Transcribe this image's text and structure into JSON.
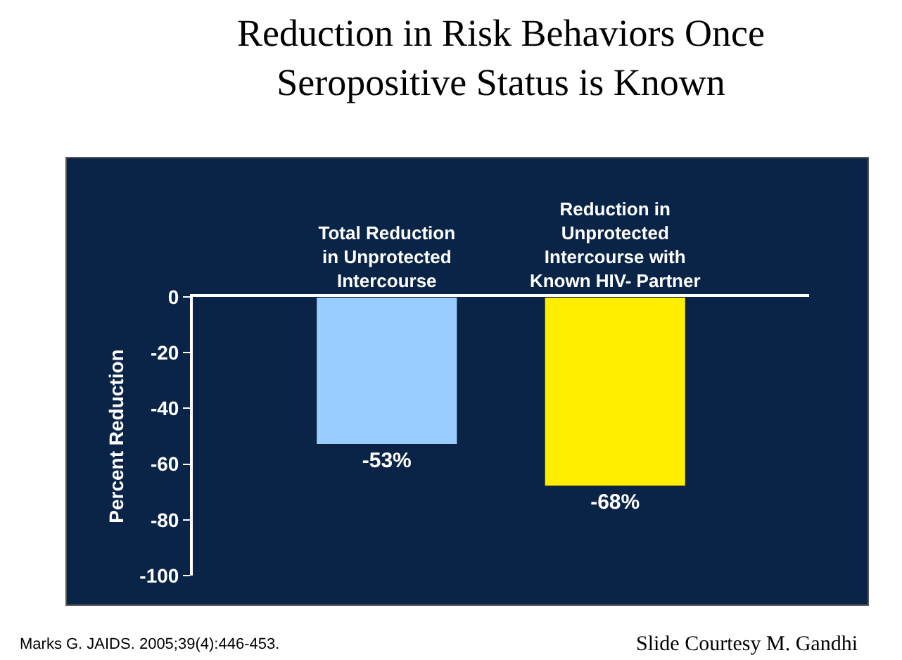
{
  "chart_data": {
    "type": "bar",
    "title": "Reduction in Risk Behaviors Once\nSeropositive Status is Known",
    "categories": [
      "Total Reduction\nin Unprotected\nIntercourse",
      "Reduction in\nUnprotected\nIntercourse with\nKnown HIV- Partner"
    ],
    "values": [
      -53,
      -68
    ],
    "colors": [
      "#99ccff",
      "#ffee00"
    ],
    "value_labels": [
      "-53%",
      "-68%"
    ],
    "ylabel": "Percent Reduction",
    "ylim": [
      -100,
      0
    ],
    "yticks": [
      0,
      -20,
      -40,
      -60,
      -80,
      -100
    ],
    "grid": false,
    "legend": false,
    "annotations": [
      "Marks G. JAIDS. 2005;39(4):446-453.",
      "Slide Courtesy M. Gandhi"
    ]
  }
}
